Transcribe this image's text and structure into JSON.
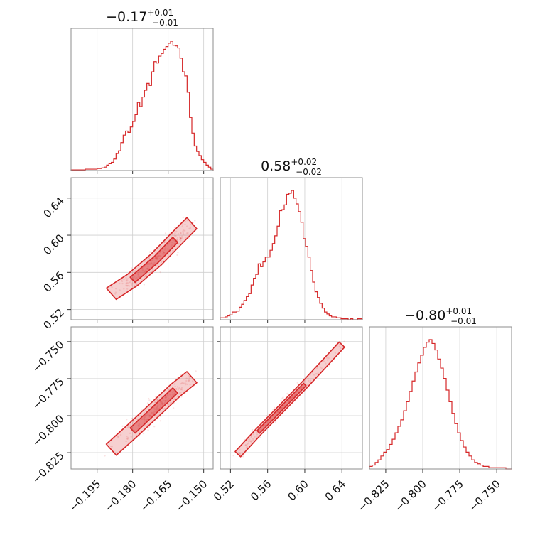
{
  "colors": {
    "series": "#d62728",
    "frame": "#8c8c8c",
    "grid": "#cfcfcf",
    "text": "#111111"
  },
  "titles": [
    {
      "median": "−0.17",
      "plus": "+0.01",
      "minus": "−0.01"
    },
    {
      "median": "0.58",
      "plus": "+0.02",
      "minus": "−0.02"
    },
    {
      "median": "−0.80",
      "plus": "+0.01",
      "minus": "−0.01"
    }
  ],
  "chart_data": {
    "type": "corner",
    "grid": true,
    "parameters": [
      {
        "range": [
          -0.206,
          -0.146
        ],
        "ticks": [
          -0.195,
          -0.18,
          -0.165,
          -0.15
        ],
        "tick_labels": [
          "−0.195",
          "−0.180",
          "−0.165",
          "−0.150"
        ]
      },
      {
        "range": [
          0.509,
          0.662
        ],
        "ticks": [
          0.52,
          0.56,
          0.6,
          0.64
        ],
        "tick_labels": [
          "0.52",
          "0.56",
          "0.60",
          "0.64"
        ]
      },
      {
        "range": [
          -0.836,
          -0.74
        ],
        "ticks": [
          -0.825,
          -0.8,
          -0.775,
          -0.75
        ],
        "tick_labels": [
          "−0.825",
          "−0.800",
          "−0.775",
          "−0.750"
        ]
      }
    ],
    "histograms": [
      {
        "param": 0,
        "bin_start": -0.206,
        "bin_end": -0.146,
        "counts": [
          1,
          1,
          1,
          1,
          1,
          1,
          2,
          2,
          2,
          2,
          2,
          3,
          3,
          4,
          5,
          8,
          10,
          12,
          17,
          25,
          29,
          41,
          52,
          58,
          56,
          64,
          72,
          82,
          100,
          94,
          108,
          118,
          128,
          125,
          145,
          160,
          158,
          168,
          172,
          178,
          182,
          187,
          190,
          184,
          183,
          180,
          165,
          145,
          139,
          115,
          78,
          55,
          36,
          28,
          22,
          16,
          12,
          8,
          5,
          2
        ]
      },
      {
        "param": 1,
        "bin_start": 0.509,
        "bin_end": 0.662,
        "counts": [
          2,
          2,
          3,
          4,
          5,
          8,
          8,
          9,
          13,
          16,
          20,
          24,
          27,
          36,
          43,
          47,
          58,
          55,
          60,
          65,
          65,
          72,
          79,
          87,
          97,
          113,
          114,
          119,
          130,
          131,
          134,
          126,
          120,
          112,
          101,
          84,
          76,
          65,
          51,
          39,
          29,
          23,
          17,
          12,
          8,
          6,
          4,
          3,
          3,
          2,
          2,
          1,
          1,
          1,
          0,
          1,
          0,
          0,
          1,
          1
        ]
      },
      {
        "param": 2,
        "bin_start": -0.836,
        "bin_end": -0.74,
        "counts": [
          2,
          3,
          5,
          7,
          10,
          13,
          15,
          19,
          23,
          28,
          33,
          38,
          45,
          52,
          60,
          68,
          75,
          82,
          88,
          94,
          98,
          100,
          97,
          92,
          85,
          78,
          70,
          61,
          52,
          43,
          35,
          28,
          22,
          17,
          13,
          10,
          7,
          5,
          4,
          3,
          2,
          2,
          1,
          1,
          1,
          1,
          1,
          1,
          0,
          0
        ]
      }
    ],
    "pairs": [
      {
        "x": 0,
        "y": 1,
        "correlation": "positive, strong",
        "levels": [
          "68%",
          "95%"
        ]
      },
      {
        "x": 0,
        "y": 2,
        "correlation": "positive, strong",
        "levels": [
          "68%",
          "95%"
        ]
      },
      {
        "x": 1,
        "y": 2,
        "correlation": "positive, near-linear",
        "levels": [
          "68%",
          "95%"
        ]
      }
    ]
  }
}
